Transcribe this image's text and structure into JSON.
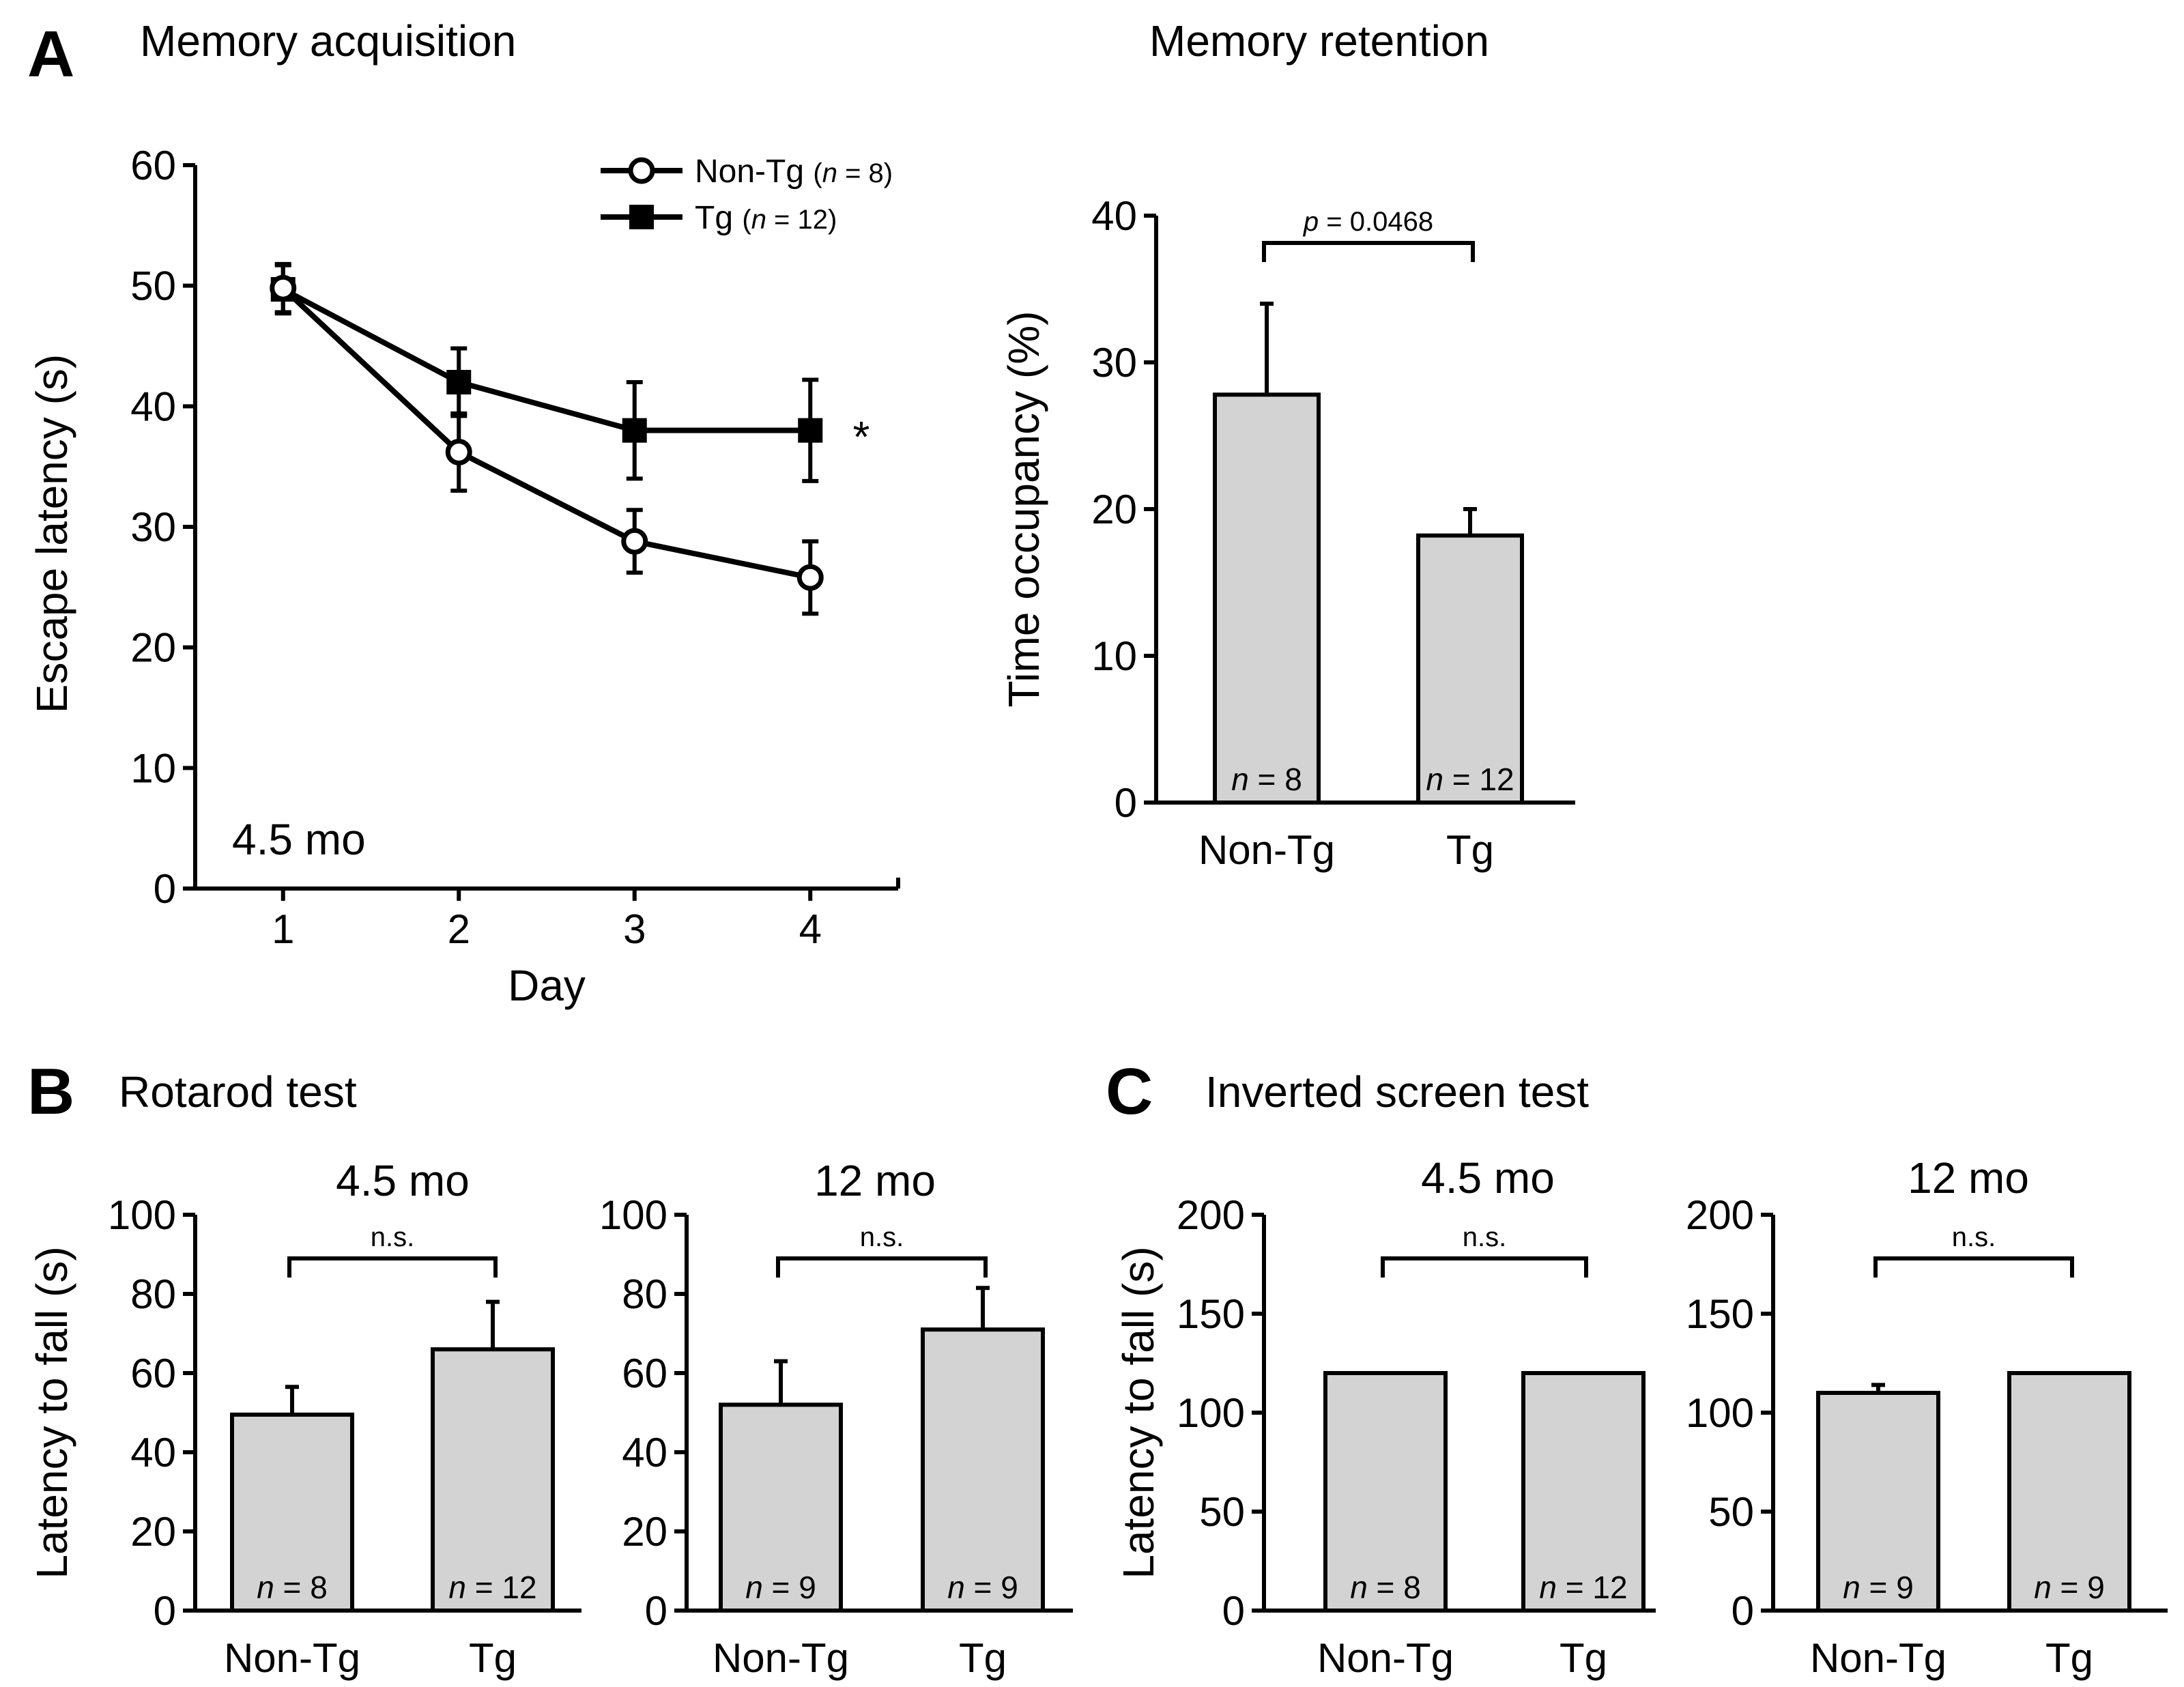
{
  "figure": {
    "panel_a_letter": "A",
    "panel_b_letter": "B",
    "panel_c_letter": "C",
    "panel_b_title": "Rotarod test",
    "panel_c_title": "Inverted screen test"
  },
  "chart_data": [
    {
      "id": "acq",
      "type": "line",
      "title": "Memory acquisition",
      "xlabel": "Day",
      "ylabel": "Escape latency (s)",
      "xlim": [
        0.5,
        4.5
      ],
      "ylim": [
        0,
        60
      ],
      "xticks": [
        1,
        2,
        3,
        4
      ],
      "yticks": [
        0,
        10,
        20,
        30,
        40,
        50,
        60
      ],
      "x": [
        1,
        2,
        3,
        4
      ],
      "annotation": "4.5 mo",
      "significance": "*",
      "series": [
        {
          "name": "Non-Tg",
          "n_label": "(n = 8)",
          "n_prefix": "(",
          "n_italic": "n",
          "n_suffix": " = 8)",
          "marker": "open-circle",
          "values": [
            49.8,
            36.2,
            28.8,
            25.8
          ],
          "errors": [
            2.0,
            3.2,
            2.6,
            3.0
          ]
        },
        {
          "name": "Tg",
          "n_label": "(n = 12)",
          "n_prefix": "(",
          "n_italic": "n",
          "n_suffix": " = 12)",
          "marker": "filled-square",
          "values": [
            49.7,
            42.0,
            38.0,
            38.0
          ],
          "errors": [
            2.0,
            2.8,
            4.0,
            4.2
          ]
        }
      ]
    },
    {
      "id": "ret",
      "type": "bar",
      "title": "Memory retention",
      "xlabel": "",
      "ylabel": "Time occupancy (%)",
      "ylim": [
        0,
        40
      ],
      "yticks": [
        0,
        10,
        20,
        30,
        40
      ],
      "categories": [
        "Non-Tg",
        "Tg"
      ],
      "values": [
        27.8,
        18.2
      ],
      "errors": [
        6.2,
        1.8
      ],
      "n_labels": [
        "n = 8",
        "n = 12"
      ],
      "comparison": "p = 0.0468"
    },
    {
      "id": "rot45",
      "type": "bar",
      "title": "4.5 mo",
      "xlabel": "",
      "ylabel": "Latency to fall (s)",
      "ylim": [
        0,
        100
      ],
      "yticks": [
        0,
        20,
        40,
        60,
        80,
        100
      ],
      "categories": [
        "Non-Tg",
        "Tg"
      ],
      "values": [
        49.5,
        66.0
      ],
      "errors": [
        7.0,
        12.0
      ],
      "n_labels": [
        "n = 8",
        "n = 12"
      ],
      "comparison": "n.s."
    },
    {
      "id": "rot12",
      "type": "bar",
      "title": "12 mo",
      "xlabel": "",
      "ylabel": "",
      "ylim": [
        0,
        100
      ],
      "yticks": [
        0,
        20,
        40,
        60,
        80,
        100
      ],
      "categories": [
        "Non-Tg",
        "Tg"
      ],
      "values": [
        52.0,
        71.0
      ],
      "errors": [
        11.0,
        10.5
      ],
      "n_labels": [
        "n = 9",
        "n = 9"
      ],
      "comparison": "n.s."
    },
    {
      "id": "inv45",
      "type": "bar",
      "title": "4.5 mo",
      "xlabel": "",
      "ylabel": "Latency to fall (s)",
      "ylim": [
        0,
        200
      ],
      "yticks": [
        0,
        50,
        100,
        150,
        200
      ],
      "categories": [
        "Non-Tg",
        "Tg"
      ],
      "values": [
        120,
        120
      ],
      "errors": [
        0,
        0
      ],
      "n_labels": [
        "n = 8",
        "n = 12"
      ],
      "comparison": "n.s."
    },
    {
      "id": "inv12",
      "type": "bar",
      "title": "12 mo",
      "xlabel": "",
      "ylabel": "",
      "ylim": [
        0,
        200
      ],
      "yticks": [
        0,
        50,
        100,
        150,
        200
      ],
      "categories": [
        "Non-Tg",
        "Tg"
      ],
      "values": [
        110,
        120
      ],
      "errors": [
        4,
        0
      ],
      "n_labels": [
        "n = 9",
        "n = 9"
      ],
      "comparison": "n.s."
    }
  ]
}
